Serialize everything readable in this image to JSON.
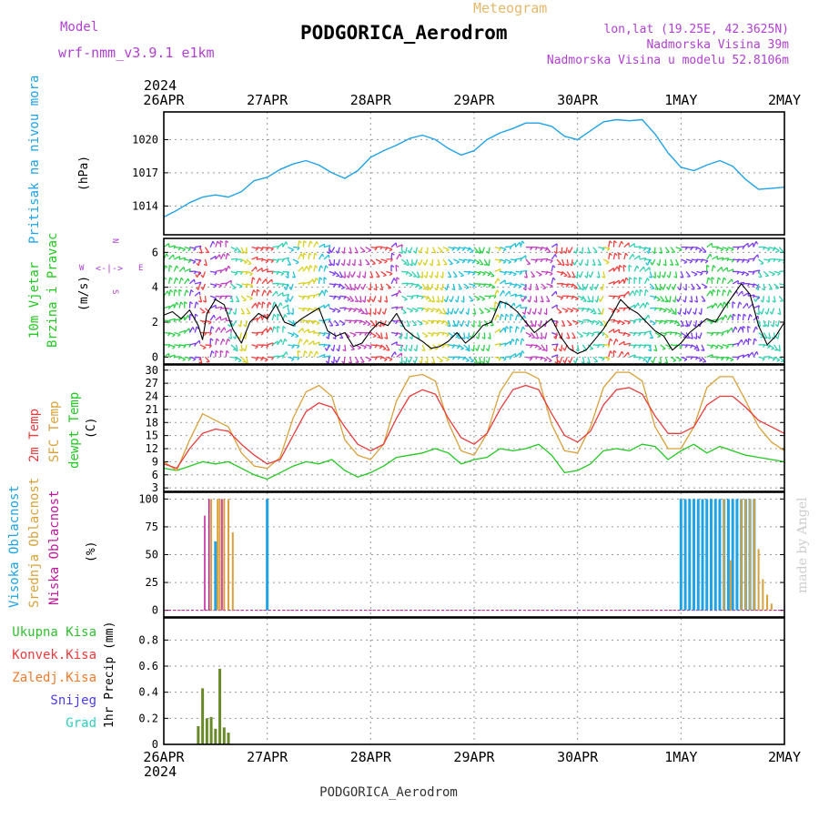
{
  "header": {
    "title": "PODGORICA_Aerodrom",
    "subtitle": "Meteogram",
    "model_label": "Model",
    "model_value": "wrf-nmm_v3.9.1  e1km",
    "lonlat": "lon,lat (19.25E, 42.3625N)",
    "elevation": "Nadmorska Visina 39m",
    "model_elevation": "Nadmorska Visina u modelu 52.8106m",
    "year_top": "2024",
    "year_bottom": "2024",
    "footer": "PODGORICA_Aerodrom",
    "watermark": "made by Angel"
  },
  "time_axis": {
    "labels": [
      "26APR",
      "27APR",
      "28APR",
      "29APR",
      "30APR",
      "1MAY",
      "2MAY"
    ],
    "range_hours": [
      0,
      144
    ]
  },
  "colors": {
    "pressure": "#1fa2e6",
    "temp2m": "#e83c3c",
    "sfctemp": "#d9a13b",
    "dewpt": "#22c922",
    "wind_speed": "#000000",
    "cloud_high": "#1fa2e6",
    "cloud_mid": "#d9a13b",
    "cloud_low": "#c0189a",
    "rain_total": "#2fbf2f",
    "rain_conv": "#e83c3c",
    "rain_frozen": "#f07a2a",
    "snow": "#4a3be8",
    "graupel": "#2dcfc0",
    "label_purple": "#b040d0"
  },
  "chart_data": [
    {
      "type": "line",
      "panel": "pressure",
      "ylabel": "Pritisak na nivou mora",
      "unit": "(hPa)",
      "yticks": [
        1014,
        1017,
        1020
      ],
      "ylim": [
        1011.4,
        1022.5
      ],
      "grid": true,
      "x": [
        0,
        3,
        6,
        9,
        12,
        15,
        18,
        21,
        24,
        27,
        30,
        33,
        36,
        39,
        42,
        45,
        48,
        51,
        54,
        57,
        60,
        63,
        66,
        69,
        72,
        75,
        78,
        81,
        84,
        87,
        90,
        93,
        96,
        99,
        102,
        105,
        108,
        111,
        114,
        117,
        120,
        123,
        126,
        129,
        132,
        135,
        138,
        141,
        144
      ],
      "series": [
        {
          "name": "",
          "values": [
            1013.0,
            1013.6,
            1014.3,
            1014.8,
            1015.0,
            1014.8,
            1015.3,
            1016.3,
            1016.6,
            1017.3,
            1017.8,
            1018.1,
            1017.7,
            1017.0,
            1016.5,
            1017.2,
            1018.4,
            1019.0,
            1019.5,
            1020.1,
            1020.4,
            1020.0,
            1019.2,
            1018.6,
            1019.0,
            1020.0,
            1020.6,
            1021.0,
            1021.5,
            1021.5,
            1021.2,
            1020.3,
            1020.0,
            1020.8,
            1021.6,
            1021.8,
            1021.7,
            1021.8,
            1020.5,
            1018.8,
            1017.5,
            1017.2,
            1017.7,
            1018.1,
            1017.6,
            1016.4,
            1015.5,
            1015.6,
            1015.7
          ]
        }
      ]
    },
    {
      "type": "line",
      "panel": "wind",
      "ylabel": "10m Vjetar Brzina i Pravac",
      "unit": "(m/s)",
      "yticks": [
        0,
        2,
        4,
        6
      ],
      "ylim": [
        -0.4,
        6.8
      ],
      "grid": true,
      "compass": {
        "north": "N",
        "south": "S",
        "east": "E",
        "west": "W"
      },
      "x": [
        0,
        2,
        4,
        6,
        8,
        9,
        10,
        12,
        14,
        16,
        18,
        20,
        22,
        24,
        26,
        28,
        30,
        32,
        34,
        36,
        38,
        40,
        42,
        44,
        46,
        48,
        50,
        52,
        54,
        56,
        58,
        60,
        62,
        64,
        66,
        68,
        70,
        72,
        74,
        76,
        78,
        80,
        82,
        84,
        86,
        88,
        90,
        92,
        94,
        96,
        98,
        100,
        102,
        104,
        106,
        108,
        110,
        112,
        114,
        116,
        118,
        120,
        122,
        124,
        126,
        128,
        130,
        132,
        134,
        136,
        138,
        140,
        142,
        144
      ],
      "series": [
        {
          "name": "",
          "values": [
            2.4,
            2.6,
            2.2,
            2.7,
            1.8,
            1.0,
            2.5,
            3.3,
            3.0,
            1.6,
            0.8,
            2.0,
            2.5,
            2.2,
            3.0,
            2.0,
            1.8,
            2.2,
            2.5,
            2.8,
            1.5,
            1.2,
            1.4,
            0.6,
            0.8,
            1.5,
            2.0,
            1.8,
            2.5,
            1.6,
            1.2,
            0.9,
            0.5,
            0.6,
            0.9,
            1.4,
            0.8,
            1.2,
            1.8,
            2.0,
            3.2,
            3.0,
            2.6,
            2.0,
            1.4,
            1.8,
            2.2,
            1.2,
            0.5,
            0.2,
            0.4,
            1.0,
            1.6,
            2.4,
            3.3,
            2.8,
            2.5,
            2.0,
            1.5,
            1.2,
            0.4,
            0.8,
            1.4,
            1.8,
            2.2,
            2.0,
            2.8,
            3.5,
            4.2,
            3.6,
            1.8,
            0.7,
            1.2,
            2.0
          ]
        }
      ]
    },
    {
      "type": "line",
      "panel": "temperature",
      "ylabel": "2m Temp / SFC Temp / dewpt Temp",
      "unit": "(C)",
      "yticks": [
        3,
        6,
        9,
        12,
        15,
        18,
        21,
        24,
        27,
        30
      ],
      "ylim": [
        2.2,
        31.2
      ],
      "grid": true,
      "x": [
        0,
        3,
        6,
        9,
        12,
        15,
        18,
        21,
        24,
        27,
        30,
        33,
        36,
        39,
        42,
        45,
        48,
        51,
        54,
        57,
        60,
        63,
        66,
        69,
        72,
        75,
        78,
        81,
        84,
        87,
        90,
        93,
        96,
        99,
        102,
        105,
        108,
        111,
        114,
        117,
        120,
        123,
        126,
        129,
        132,
        135,
        138,
        141,
        144
      ],
      "series": [
        {
          "name": "2m Temp",
          "values": [
            8.5,
            7.5,
            12.0,
            15.5,
            16.5,
            16.0,
            13.0,
            10.5,
            8.5,
            9.5,
            15.0,
            20.5,
            22.5,
            21.5,
            17.0,
            13.0,
            11.5,
            13.0,
            19.0,
            24.0,
            25.5,
            24.5,
            19.0,
            14.5,
            13.0,
            15.5,
            21.0,
            25.5,
            26.5,
            25.5,
            20.0,
            15.0,
            13.5,
            16.0,
            22.0,
            25.5,
            26.0,
            24.5,
            19.5,
            15.5,
            15.5,
            17.0,
            22.0,
            24.0,
            24.0,
            21.5,
            18.5,
            17.0,
            15.5
          ]
        },
        {
          "name": "SFC Temp",
          "values": [
            9.0,
            7.0,
            14.0,
            20.0,
            18.5,
            17.0,
            11.0,
            8.0,
            7.5,
            10.0,
            19.0,
            25.0,
            26.5,
            24.0,
            14.0,
            10.5,
            9.5,
            13.0,
            23.0,
            28.5,
            29.0,
            27.5,
            18.0,
            11.5,
            10.5,
            15.5,
            25.0,
            29.5,
            29.5,
            28.0,
            17.5,
            11.5,
            11.0,
            17.0,
            26.0,
            29.5,
            29.5,
            27.5,
            17.0,
            12.0,
            12.0,
            17.0,
            26.0,
            28.5,
            28.5,
            23.0,
            17.0,
            13.5,
            11.5
          ]
        },
        {
          "name": "dewpt Temp",
          "values": [
            7.5,
            7.0,
            8.0,
            9.0,
            8.5,
            9.0,
            7.5,
            6.0,
            5.0,
            6.5,
            8.0,
            9.0,
            8.5,
            9.5,
            7.0,
            5.5,
            6.5,
            8.0,
            10.0,
            10.5,
            11.0,
            12.0,
            11.0,
            8.5,
            9.5,
            10.0,
            12.0,
            11.5,
            12.0,
            13.0,
            10.5,
            6.5,
            7.0,
            8.5,
            11.5,
            12.0,
            11.5,
            13.0,
            12.5,
            9.5,
            11.5,
            13.0,
            11.0,
            12.5,
            11.5,
            10.5,
            10.0,
            9.5,
            9.0
          ]
        }
      ]
    },
    {
      "type": "bar",
      "panel": "clouds",
      "ylabel": "Visoka Oblacnost / Srednja Oblacnost / Niska Oblacnost",
      "unit": "(%)",
      "yticks": [
        0,
        25,
        50,
        75,
        100
      ],
      "ylim": [
        -6,
        106
      ],
      "grid": true,
      "series": [
        {
          "name": "Visoka Oblacnost",
          "x": [
            12,
            24,
            120,
            121,
            122,
            123,
            124,
            125,
            126,
            127,
            128,
            129,
            130,
            131,
            132,
            133,
            134,
            135,
            136,
            137
          ],
          "values": [
            62,
            100,
            100,
            100,
            100,
            100,
            100,
            100,
            100,
            100,
            100,
            100,
            100,
            100,
            100,
            100,
            100,
            100,
            100,
            100
          ]
        },
        {
          "name": "Srednja Oblacnost",
          "x": [
            11,
            12.5,
            13,
            14,
            15,
            16,
            130,
            131.5,
            134,
            135,
            136,
            137,
            138,
            139,
            140,
            141
          ],
          "values": [
            100,
            100,
            100,
            100,
            100,
            70,
            100,
            45,
            100,
            100,
            100,
            100,
            55,
            28,
            14,
            6
          ]
        },
        {
          "name": "Niska Oblacnost",
          "x": [
            9.5,
            10.5,
            13.5
          ],
          "values": [
            85,
            100,
            100
          ]
        }
      ]
    },
    {
      "type": "bar",
      "panel": "precip",
      "ylabel": "1hr Precip",
      "unit": "(mm)",
      "yticks": [
        0,
        0.2,
        0.4,
        0.6,
        0.8
      ],
      "ylim": [
        0,
        0.97
      ],
      "grid": true,
      "legend": [
        "Ukupna Kisa",
        "Konvek.Kisa",
        "Zaledj.Kisa",
        "Snijeg",
        "Grad"
      ],
      "series": [
        {
          "name": "Ukupna Kisa",
          "x": [
            8,
            9,
            10,
            11,
            12,
            13,
            14,
            15
          ],
          "values": [
            0.14,
            0.43,
            0.2,
            0.21,
            0.12,
            0.58,
            0.13,
            0.09
          ]
        }
      ]
    }
  ]
}
